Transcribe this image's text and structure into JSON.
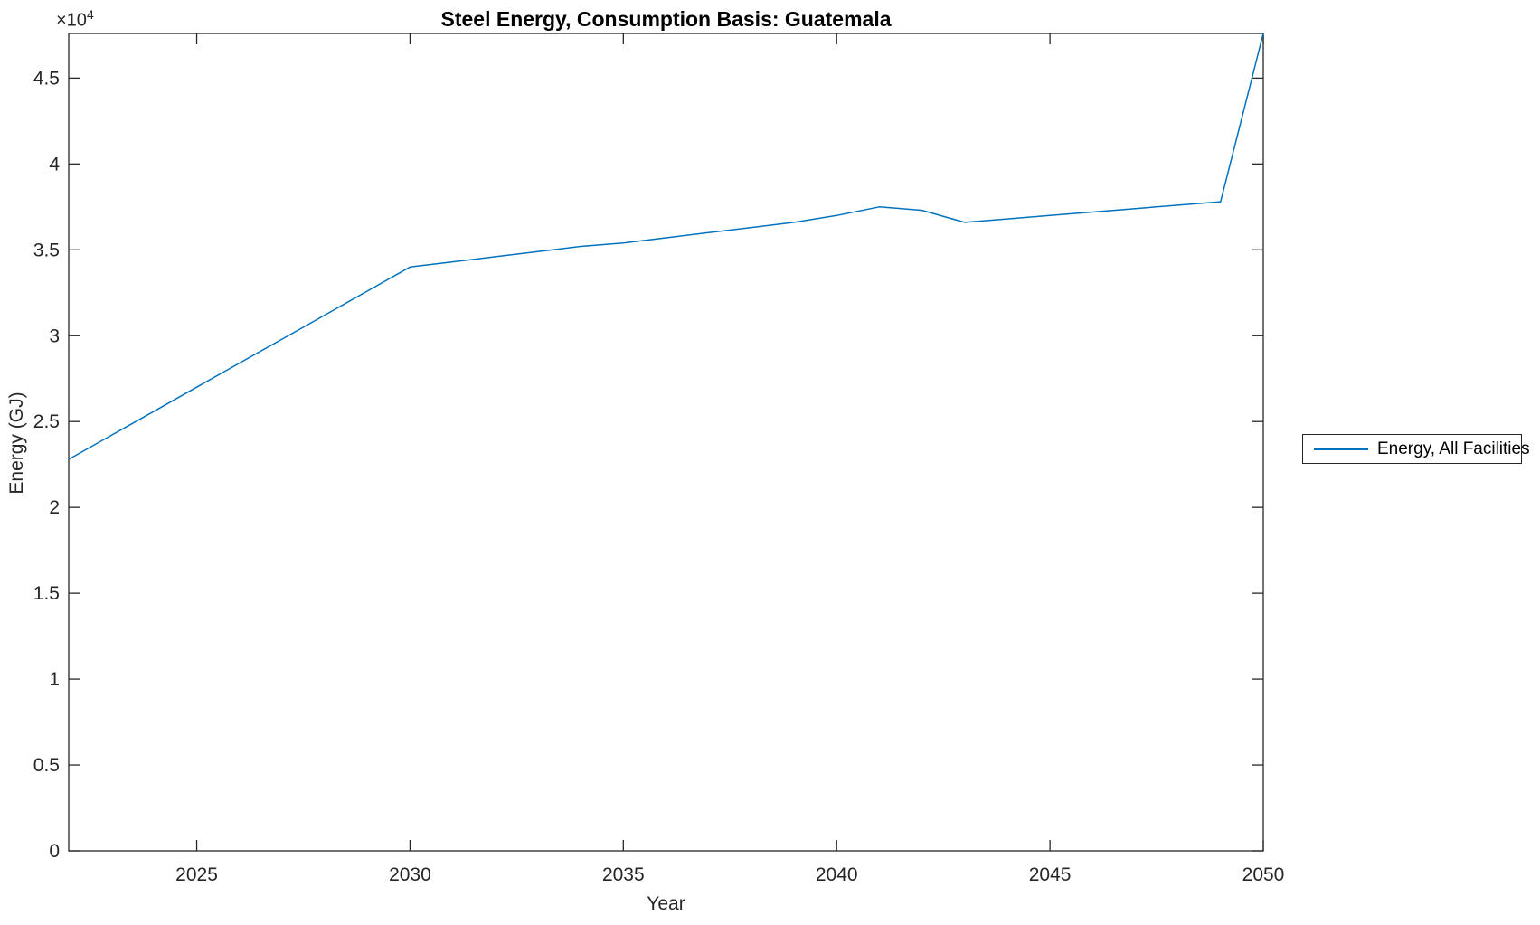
{
  "figure": {
    "background": "#ffffff"
  },
  "chart_data": {
    "type": "line",
    "title": "Steel Energy, Consumption Basis: Guatemala",
    "xlabel": "Year",
    "ylabel": "Energy (GJ)",
    "y_multiplier_base": "×10",
    "y_multiplier_exp": "4",
    "xlim": [
      2022,
      2050
    ],
    "ylim": [
      0,
      47600
    ],
    "xticks": [
      2025,
      2030,
      2035,
      2040,
      2045,
      2050
    ],
    "xtick_labels": [
      "2025",
      "2030",
      "2035",
      "2040",
      "2045",
      "2050"
    ],
    "ytick_values": [
      0,
      5000,
      10000,
      15000,
      20000,
      25000,
      30000,
      35000,
      40000,
      45000
    ],
    "ytick_labels": [
      "0",
      "0.5",
      "1",
      "1.5",
      "2",
      "2.5",
      "3",
      "3.5",
      "4",
      "4.5"
    ],
    "grid": false,
    "box": true,
    "legend_position": "outside-right",
    "series": [
      {
        "name": "Energy, All Facilities",
        "color": "#0072BD",
        "x": [
          2022,
          2023,
          2024,
          2025,
          2026,
          2027,
          2028,
          2029,
          2030,
          2031,
          2032,
          2033,
          2034,
          2035,
          2036,
          2037,
          2038,
          2039,
          2040,
          2041,
          2042,
          2043,
          2044,
          2045,
          2046,
          2047,
          2048,
          2049,
          2050
        ],
        "values": [
          22800,
          24200,
          25600,
          27000,
          28400,
          29800,
          31200,
          32600,
          34000,
          34300,
          34600,
          34900,
          35200,
          35400,
          35700,
          36000,
          36300,
          36600,
          37000,
          37500,
          37300,
          36600,
          36800,
          37000,
          37200,
          37400,
          37600,
          37800,
          47600
        ]
      }
    ]
  },
  "legend": {
    "items": [
      {
        "label": "Energy, All Facilities",
        "color": "#0072BD"
      }
    ]
  },
  "colors": {
    "line": "#0072BD",
    "axis": "#262626",
    "title": "#000000",
    "background": "#ffffff"
  }
}
